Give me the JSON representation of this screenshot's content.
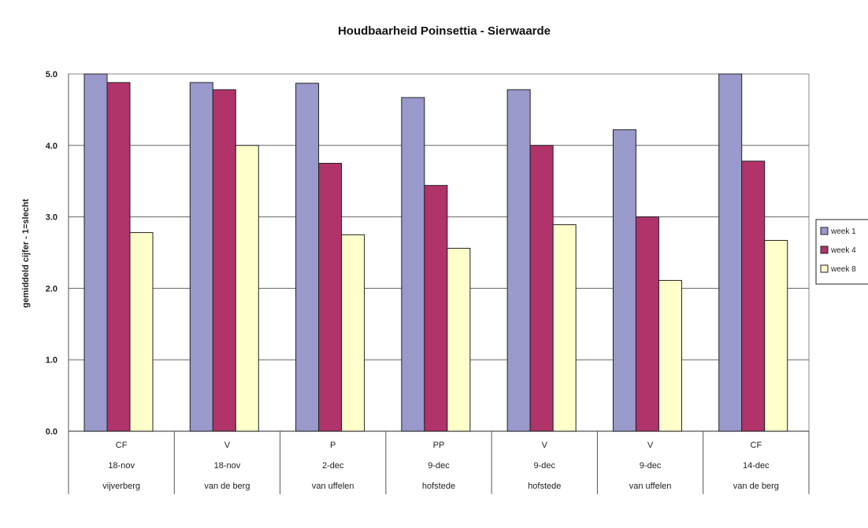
{
  "chart_data": {
    "type": "bar",
    "title": "Houdbaarheid Poinsettia - Sierwaarde",
    "ylabel": "gemiddeld cijfer - 1=slecht",
    "xlabel": "",
    "ylim": [
      0,
      5
    ],
    "yticks": [
      "0.0",
      "1.0",
      "2.0",
      "3.0",
      "4.0",
      "5.0"
    ],
    "grid": true,
    "legend_position": "right",
    "categories": [
      [
        "CF",
        "18-nov",
        "vijverberg"
      ],
      [
        "V",
        "18-nov",
        "van de berg"
      ],
      [
        "P",
        "2-dec",
        "van uffelen"
      ],
      [
        "PP",
        "9-dec",
        "hofstede"
      ],
      [
        "V",
        "9-dec",
        "hofstede"
      ],
      [
        "V",
        "9-dec",
        "van uffelen"
      ],
      [
        "CF",
        "14-dec",
        "van de berg"
      ]
    ],
    "series": [
      {
        "name": "week 1",
        "color": "#9999cc",
        "values": [
          5.0,
          4.88,
          4.87,
          4.67,
          4.78,
          4.22,
          5.0
        ]
      },
      {
        "name": "week 4",
        "color": "#b0336a",
        "values": [
          4.88,
          4.78,
          3.75,
          3.44,
          4.0,
          3.0,
          3.78
        ]
      },
      {
        "name": "week 8",
        "color": "#ffffcc",
        "values": [
          2.78,
          4.0,
          2.75,
          2.56,
          2.89,
          2.11,
          2.67
        ]
      }
    ]
  }
}
